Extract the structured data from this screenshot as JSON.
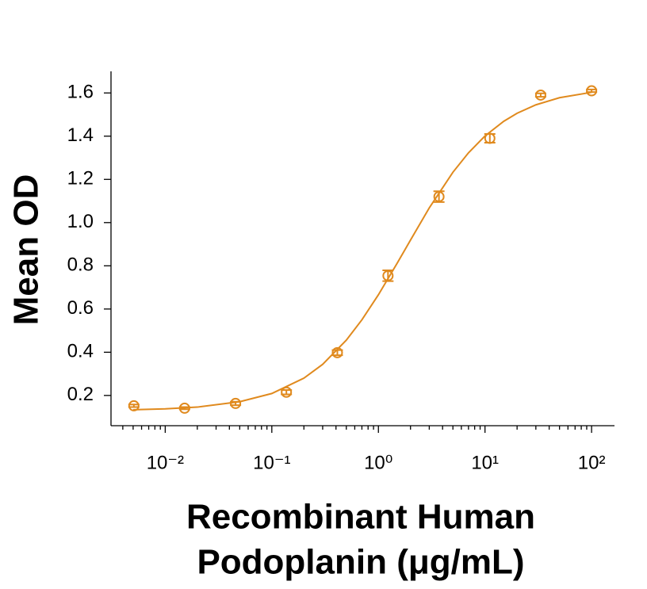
{
  "chart_data": {
    "type": "scatter",
    "y_label": "Mean OD",
    "x_label": [
      "Recombinant Human",
      "Podoplanin (μg/mL)"
    ],
    "log_x": true,
    "xlim": [
      0.0031,
      164
    ],
    "ylim": [
      0.06,
      1.7
    ],
    "xticks": [
      {
        "value": 0.01,
        "label": "10⁻²"
      },
      {
        "value": 0.1,
        "label": "10⁻¹"
      },
      {
        "value": 1,
        "label": "10⁰"
      },
      {
        "value": 10,
        "label": "10¹"
      },
      {
        "value": 100,
        "label": "10²"
      }
    ],
    "xminorticks": [
      0.004,
      0.005,
      0.006,
      0.007,
      0.008,
      0.009,
      0.02,
      0.03,
      0.04,
      0.05,
      0.06,
      0.07,
      0.08,
      0.09,
      0.2,
      0.3,
      0.4,
      0.5,
      0.6,
      0.7,
      0.8,
      0.9,
      2,
      3,
      4,
      5,
      6,
      7,
      8,
      9,
      20,
      30,
      40,
      50,
      60,
      70,
      80,
      90
    ],
    "yticks": [
      0.2,
      0.4,
      0.6,
      0.8,
      {
        "value": 1,
        "label": "1.0"
      },
      1.2,
      1.4,
      1.6
    ],
    "grid": false,
    "series": [
      {
        "style": "markers",
        "color": "#e08a1e",
        "x": [
          0.00508,
          0.0152,
          0.0457,
          0.137,
          0.412,
          1.23,
          3.7,
          11.1,
          33.3,
          100
        ],
        "values": [
          0.152,
          0.141,
          0.163,
          0.215,
          0.398,
          0.754,
          1.12,
          1.39,
          1.59,
          1.61
        ],
        "errors": [
          0.006,
          0.005,
          0.008,
          0.01,
          0.012,
          0.025,
          0.025,
          0.02,
          0.008,
          0.006
        ]
      },
      {
        "style": "line",
        "color": "#e08a1e",
        "x": [
          0.005,
          0.01,
          0.02,
          0.05,
          0.1,
          0.2,
          0.3,
          0.5,
          0.7,
          1,
          1.5,
          2,
          3,
          5,
          7,
          10,
          15,
          20,
          30,
          50,
          100
        ],
        "values": [
          0.134,
          0.138,
          0.146,
          0.171,
          0.209,
          0.28,
          0.344,
          0.456,
          0.55,
          0.666,
          0.812,
          0.919,
          1.068,
          1.233,
          1.323,
          1.401,
          1.469,
          1.506,
          1.545,
          1.578,
          1.603
        ]
      }
    ]
  }
}
